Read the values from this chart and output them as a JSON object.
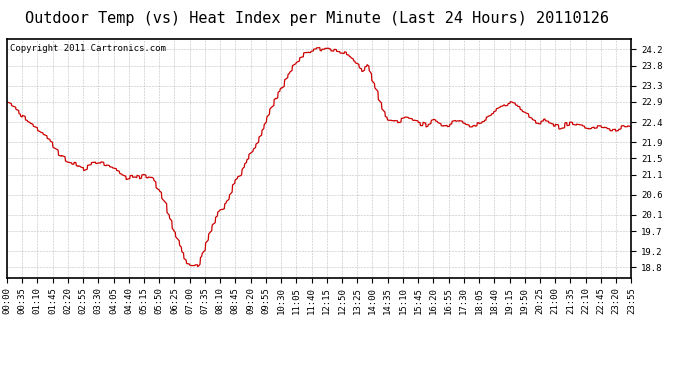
{
  "title": "Outdoor Temp (vs) Heat Index per Minute (Last 24 Hours) 20110126",
  "copyright": "Copyright 2011 Cartronics.com",
  "line_color": "#cc0000",
  "background_color": "#ffffff",
  "grid_color": "#b0b0b0",
  "yticks": [
    18.8,
    19.2,
    19.7,
    20.1,
    20.6,
    21.1,
    21.5,
    21.9,
    22.4,
    22.9,
    23.3,
    23.8,
    24.2
  ],
  "ylim": [
    18.55,
    24.45
  ],
  "xtick_labels": [
    "00:00",
    "00:35",
    "01:10",
    "01:45",
    "02:20",
    "02:55",
    "03:30",
    "04:05",
    "04:40",
    "05:15",
    "05:50",
    "06:25",
    "07:00",
    "07:35",
    "08:10",
    "08:45",
    "09:20",
    "09:55",
    "10:30",
    "11:05",
    "11:40",
    "12:15",
    "12:50",
    "13:25",
    "14:00",
    "14:35",
    "15:10",
    "15:45",
    "16:20",
    "16:55",
    "17:30",
    "18:05",
    "18:40",
    "19:15",
    "19:50",
    "20:25",
    "21:00",
    "21:35",
    "22:10",
    "22:45",
    "23:20",
    "23:55"
  ],
  "title_fontsize": 11,
  "copyright_fontsize": 6.5,
  "tick_fontsize": 6.5,
  "ctrl_points": [
    [
      0,
      22.9
    ],
    [
      20,
      22.7
    ],
    [
      40,
      22.5
    ],
    [
      60,
      22.3
    ],
    [
      80,
      22.1
    ],
    [
      100,
      21.9
    ],
    [
      120,
      21.6
    ],
    [
      130,
      21.5
    ],
    [
      140,
      21.4
    ],
    [
      160,
      21.35
    ],
    [
      175,
      21.2
    ],
    [
      185,
      21.3
    ],
    [
      195,
      21.35
    ],
    [
      205,
      21.4
    ],
    [
      215,
      21.4
    ],
    [
      225,
      21.35
    ],
    [
      235,
      21.3
    ],
    [
      245,
      21.25
    ],
    [
      255,
      21.2
    ],
    [
      265,
      21.1
    ],
    [
      275,
      21.0
    ],
    [
      285,
      21.05
    ],
    [
      295,
      21.1
    ],
    [
      305,
      21.0
    ],
    [
      315,
      21.1
    ],
    [
      325,
      21.05
    ],
    [
      335,
      21.0
    ],
    [
      345,
      20.8
    ],
    [
      355,
      20.6
    ],
    [
      365,
      20.3
    ],
    [
      375,
      20.0
    ],
    [
      385,
      19.7
    ],
    [
      395,
      19.4
    ],
    [
      405,
      19.1
    ],
    [
      415,
      18.9
    ],
    [
      425,
      18.85
    ],
    [
      435,
      18.85
    ],
    [
      440,
      18.85
    ],
    [
      445,
      19.0
    ],
    [
      455,
      19.3
    ],
    [
      465,
      19.6
    ],
    [
      475,
      19.9
    ],
    [
      485,
      20.1
    ],
    [
      490,
      20.2
    ],
    [
      495,
      20.25
    ],
    [
      500,
      20.3
    ],
    [
      510,
      20.5
    ],
    [
      520,
      20.8
    ],
    [
      530,
      21.0
    ],
    [
      535,
      21.05
    ],
    [
      540,
      21.1
    ],
    [
      545,
      21.3
    ],
    [
      555,
      21.5
    ],
    [
      560,
      21.6
    ],
    [
      565,
      21.7
    ],
    [
      570,
      21.8
    ],
    [
      575,
      21.9
    ],
    [
      580,
      22.0
    ],
    [
      585,
      22.1
    ],
    [
      590,
      22.2
    ],
    [
      600,
      22.5
    ],
    [
      610,
      22.8
    ],
    [
      620,
      23.0
    ],
    [
      630,
      23.2
    ],
    [
      640,
      23.4
    ],
    [
      650,
      23.6
    ],
    [
      660,
      23.8
    ],
    [
      670,
      23.95
    ],
    [
      680,
      24.05
    ],
    [
      690,
      24.1
    ],
    [
      700,
      24.15
    ],
    [
      710,
      24.2
    ],
    [
      720,
      24.22
    ],
    [
      730,
      24.2
    ],
    [
      740,
      24.22
    ],
    [
      750,
      24.2
    ],
    [
      760,
      24.18
    ],
    [
      770,
      24.15
    ],
    [
      780,
      24.1
    ],
    [
      790,
      24.05
    ],
    [
      800,
      23.9
    ],
    [
      810,
      23.8
    ],
    [
      815,
      23.7
    ],
    [
      820,
      23.65
    ],
    [
      825,
      23.75
    ],
    [
      830,
      23.8
    ],
    [
      835,
      23.7
    ],
    [
      840,
      23.5
    ],
    [
      850,
      23.2
    ],
    [
      860,
      22.9
    ],
    [
      870,
      22.6
    ],
    [
      875,
      22.5
    ],
    [
      880,
      22.45
    ],
    [
      890,
      22.45
    ],
    [
      900,
      22.4
    ],
    [
      910,
      22.45
    ],
    [
      920,
      22.5
    ],
    [
      930,
      22.45
    ],
    [
      940,
      22.4
    ],
    [
      950,
      22.35
    ],
    [
      960,
      22.35
    ],
    [
      965,
      22.3
    ],
    [
      970,
      22.35
    ],
    [
      975,
      22.4
    ],
    [
      980,
      22.45
    ],
    [
      985,
      22.5
    ],
    [
      990,
      22.45
    ],
    [
      995,
      22.4
    ],
    [
      1000,
      22.35
    ],
    [
      1010,
      22.3
    ],
    [
      1020,
      22.35
    ],
    [
      1030,
      22.4
    ],
    [
      1040,
      22.45
    ],
    [
      1050,
      22.4
    ],
    [
      1060,
      22.35
    ],
    [
      1070,
      22.3
    ],
    [
      1080,
      22.35
    ],
    [
      1090,
      22.4
    ],
    [
      1100,
      22.45
    ],
    [
      1110,
      22.5
    ],
    [
      1115,
      22.55
    ],
    [
      1120,
      22.6
    ],
    [
      1130,
      22.7
    ],
    [
      1140,
      22.8
    ],
    [
      1150,
      22.85
    ],
    [
      1160,
      22.9
    ],
    [
      1170,
      22.85
    ],
    [
      1180,
      22.8
    ],
    [
      1190,
      22.7
    ],
    [
      1200,
      22.6
    ],
    [
      1210,
      22.5
    ],
    [
      1215,
      22.45
    ],
    [
      1220,
      22.4
    ],
    [
      1230,
      22.4
    ],
    [
      1240,
      22.45
    ],
    [
      1250,
      22.4
    ],
    [
      1260,
      22.35
    ],
    [
      1270,
      22.3
    ],
    [
      1275,
      22.25
    ],
    [
      1280,
      22.3
    ],
    [
      1290,
      22.35
    ],
    [
      1300,
      22.4
    ],
    [
      1310,
      22.35
    ],
    [
      1320,
      22.3
    ],
    [
      1330,
      22.25
    ],
    [
      1340,
      22.2
    ],
    [
      1350,
      22.25
    ],
    [
      1360,
      22.3
    ],
    [
      1370,
      22.3
    ],
    [
      1380,
      22.25
    ],
    [
      1390,
      22.2
    ],
    [
      1400,
      22.2
    ],
    [
      1410,
      22.25
    ],
    [
      1420,
      22.3
    ],
    [
      1430,
      22.3
    ],
    [
      1440,
      22.25
    ]
  ]
}
